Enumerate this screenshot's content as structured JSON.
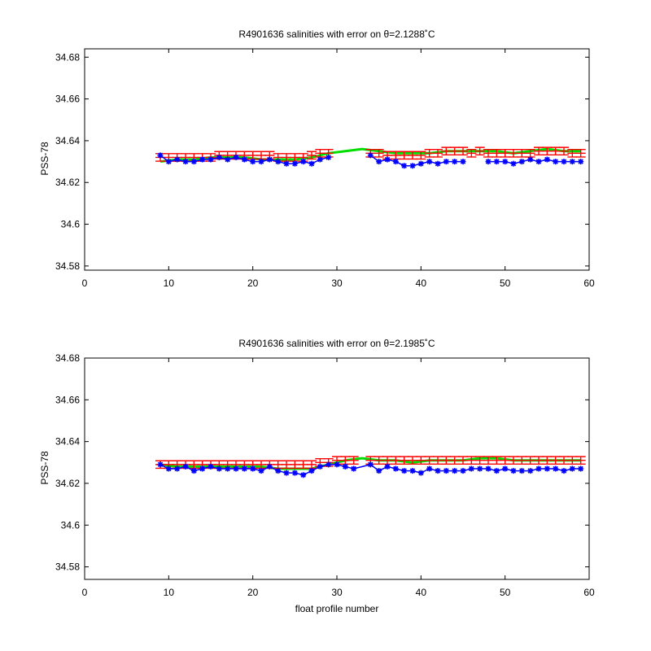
{
  "colors": {
    "float": "#0000ff",
    "mapped": "#00dd00",
    "error": "#ff0000",
    "axis": "#000000"
  },
  "chart_data": [
    {
      "type": "line",
      "title": "R4901636 salinities with error on θ=2.1288˚C",
      "xlabel": "",
      "ylabel": "PSS-78",
      "xlim": [
        0,
        60
      ],
      "ylim": [
        34.578,
        34.684
      ],
      "xticks": [
        0,
        10,
        20,
        30,
        40,
        50,
        60
      ],
      "yticks": [
        34.58,
        34.6,
        34.62,
        34.64,
        34.66,
        34.68
      ],
      "ytick_labels": [
        "34.58",
        "34.6",
        "34.62",
        "34.64",
        "34.66",
        "34.68"
      ],
      "grid": false,
      "series": [
        {
          "style": "blue-star-line",
          "x": [
            9,
            10,
            11,
            12,
            13,
            14,
            15,
            16,
            17,
            18,
            19,
            20,
            21,
            22,
            23,
            24,
            25,
            26,
            27,
            28,
            29,
            34,
            35,
            36,
            37,
            38,
            39,
            40,
            41,
            42,
            43,
            44,
            45,
            48,
            49,
            50,
            51,
            52,
            53,
            54,
            55,
            56,
            57,
            58,
            59
          ],
          "y": [
            34.633,
            34.63,
            34.631,
            34.63,
            34.63,
            34.631,
            34.631,
            34.632,
            34.631,
            34.632,
            34.631,
            34.63,
            34.63,
            34.631,
            34.63,
            34.629,
            34.629,
            34.63,
            34.629,
            34.631,
            34.632,
            34.633,
            34.63,
            34.631,
            34.63,
            34.628,
            34.628,
            34.629,
            34.63,
            34.629,
            34.63,
            34.63,
            34.63,
            34.63,
            34.63,
            34.63,
            34.629,
            34.63,
            34.631,
            34.63,
            34.631,
            34.63,
            34.63,
            34.63,
            34.63
          ]
        },
        {
          "style": "green-line",
          "x": [
            9,
            11,
            13,
            15,
            17,
            19,
            21,
            23,
            25,
            27,
            29,
            31,
            33,
            35,
            37,
            39,
            41,
            43,
            45,
            47,
            49,
            51,
            53,
            55,
            57,
            59
          ],
          "y": [
            34.63,
            34.631,
            34.631,
            34.632,
            34.632,
            34.632,
            34.631,
            34.631,
            34.631,
            34.632,
            34.634,
            34.635,
            34.636,
            34.635,
            34.634,
            34.634,
            34.634,
            34.635,
            34.635,
            34.635,
            34.635,
            34.634,
            34.635,
            34.636,
            34.635,
            34.635
          ]
        },
        {
          "style": "red-errorbars",
          "x": [
            9,
            10,
            11,
            12,
            13,
            14,
            15,
            16,
            17,
            18,
            19,
            20,
            21,
            22,
            23,
            24,
            25,
            26,
            27,
            28,
            29,
            34,
            35,
            36,
            37,
            38,
            39,
            40,
            41,
            42,
            43,
            44,
            45,
            46,
            47,
            48,
            49,
            50,
            51,
            52,
            53,
            54,
            55,
            56,
            57,
            58,
            59
          ],
          "y": [
            34.632,
            34.632,
            34.632,
            34.632,
            34.632,
            34.632,
            34.632,
            34.633,
            34.633,
            34.633,
            34.633,
            34.633,
            34.633,
            34.633,
            34.632,
            34.632,
            34.632,
            34.632,
            34.633,
            34.634,
            34.634,
            34.634,
            34.634,
            34.633,
            34.633,
            34.633,
            34.633,
            34.633,
            34.634,
            34.634,
            34.635,
            34.635,
            34.635,
            34.634,
            34.635,
            34.634,
            34.634,
            34.634,
            34.634,
            34.634,
            34.634,
            34.635,
            34.635,
            34.635,
            34.635,
            34.634,
            34.634
          ],
          "err": 0.0018
        }
      ]
    },
    {
      "type": "line",
      "title": "R4901636 salinities with error on θ=2.1985˚C",
      "xlabel": "float profile number",
      "ylabel": "PSS-78",
      "xlim": [
        0,
        60
      ],
      "ylim": [
        34.574,
        34.68
      ],
      "xticks": [
        0,
        10,
        20,
        30,
        40,
        50,
        60
      ],
      "yticks": [
        34.58,
        34.6,
        34.62,
        34.64,
        34.66,
        34.68
      ],
      "ytick_labels": [
        "34.58",
        "34.6",
        "34.62",
        "34.64",
        "34.66",
        "34.68"
      ],
      "grid": false,
      "series": [
        {
          "style": "blue-star-line",
          "x": [
            9,
            10,
            11,
            12,
            13,
            14,
            15,
            16,
            17,
            18,
            19,
            20,
            21,
            22,
            23,
            24,
            25,
            26,
            27,
            28,
            29,
            30,
            31,
            32,
            34,
            35,
            36,
            37,
            38,
            39,
            40,
            41,
            42,
            43,
            44,
            45,
            46,
            47,
            48,
            49,
            50,
            51,
            52,
            53,
            54,
            55,
            56,
            57,
            58,
            59
          ],
          "y": [
            34.629,
            34.627,
            34.627,
            34.628,
            34.626,
            34.627,
            34.628,
            34.627,
            34.627,
            34.627,
            34.627,
            34.627,
            34.626,
            34.628,
            34.626,
            34.625,
            34.625,
            34.624,
            34.626,
            34.628,
            34.629,
            34.629,
            34.628,
            34.627,
            34.629,
            34.626,
            34.628,
            34.627,
            34.626,
            34.626,
            34.625,
            34.627,
            34.626,
            34.626,
            34.626,
            34.626,
            34.627,
            34.627,
            34.627,
            34.626,
            34.627,
            34.626,
            34.626,
            34.626,
            34.627,
            34.627,
            34.627,
            34.626,
            34.627,
            34.627
          ]
        },
        {
          "style": "green-line",
          "x": [
            9,
            11,
            13,
            15,
            17,
            19,
            21,
            23,
            25,
            27,
            29,
            31,
            33,
            35,
            37,
            39,
            41,
            43,
            45,
            47,
            49,
            51,
            53,
            55,
            57,
            59
          ],
          "y": [
            34.629,
            34.628,
            34.628,
            34.628,
            34.628,
            34.628,
            34.628,
            34.627,
            34.627,
            34.627,
            34.629,
            34.631,
            34.632,
            34.631,
            34.631,
            34.63,
            34.631,
            34.631,
            34.631,
            34.632,
            34.632,
            34.631,
            34.631,
            34.631,
            34.631,
            34.631
          ]
        },
        {
          "style": "red-errorbars",
          "x": [
            9,
            10,
            11,
            12,
            13,
            14,
            15,
            16,
            17,
            18,
            19,
            20,
            21,
            22,
            23,
            24,
            25,
            26,
            27,
            28,
            29,
            30,
            31,
            32,
            34,
            35,
            36,
            37,
            38,
            39,
            40,
            41,
            42,
            43,
            44,
            45,
            46,
            47,
            48,
            49,
            50,
            51,
            52,
            53,
            54,
            55,
            56,
            57,
            58,
            59
          ],
          "y": [
            34.629,
            34.629,
            34.629,
            34.629,
            34.629,
            34.629,
            34.629,
            34.629,
            34.629,
            34.629,
            34.629,
            34.629,
            34.629,
            34.629,
            34.629,
            34.629,
            34.629,
            34.629,
            34.629,
            34.63,
            34.63,
            34.631,
            34.631,
            34.631,
            34.631,
            34.631,
            34.631,
            34.631,
            34.631,
            34.631,
            34.631,
            34.631,
            34.631,
            34.631,
            34.631,
            34.631,
            34.631,
            34.631,
            34.631,
            34.631,
            34.631,
            34.631,
            34.631,
            34.631,
            34.631,
            34.631,
            34.631,
            34.631,
            34.631,
            34.631
          ],
          "err": 0.0018
        }
      ]
    }
  ]
}
